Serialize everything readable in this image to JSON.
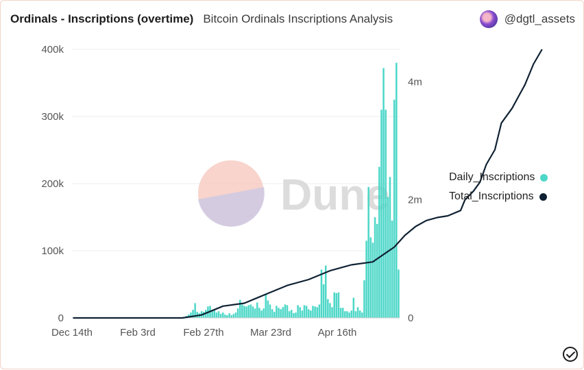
{
  "header": {
    "title": "Ordinals - Inscriptions (overtime)",
    "subtitle": "Bitcoin Ordinals Inscriptions Analysis",
    "author": "@dgtl_assets"
  },
  "watermark": "Dune",
  "chart_data": {
    "type": "bar+line",
    "y_left": {
      "ticks": [
        "0",
        "100k",
        "200k",
        "300k",
        "400k"
      ],
      "ylim": [
        0,
        400000
      ]
    },
    "y_right": {
      "ticks": [
        "0",
        "2m",
        "4m"
      ],
      "ylim": [
        0,
        4550000
      ]
    },
    "x_ticks": [
      "Dec 14th",
      "Feb 3rd",
      "Feb 27th",
      "Mar 23rd",
      "Apr 16th"
    ],
    "series": [
      {
        "name": "Daily_Inscriptions",
        "type": "bar",
        "axis": "left",
        "color": "#4dd7c8",
        "values": [
          0,
          0,
          0,
          0,
          0,
          0,
          0,
          0,
          0,
          0,
          0,
          0,
          0,
          0,
          0,
          0,
          0,
          0,
          0,
          0,
          0,
          0,
          0,
          0,
          0,
          0,
          0,
          0,
          0,
          0,
          0,
          0,
          0,
          0,
          0,
          0,
          0,
          0,
          0,
          0,
          0,
          0,
          0,
          0,
          0,
          0,
          0,
          0,
          0,
          0,
          0,
          500,
          1000,
          3000,
          5000,
          8000,
          12000,
          22000,
          9000,
          7000,
          10000,
          9000,
          12000,
          17000,
          18000,
          10000,
          12000,
          8000,
          10000,
          6000,
          8000,
          5000,
          4000,
          7000,
          4000,
          6000,
          8000,
          14000,
          27000,
          20000,
          18000,
          17000,
          19000,
          20000,
          17000,
          14000,
          23000,
          15000,
          11000,
          14000,
          36000,
          26000,
          20000,
          13000,
          9000,
          18000,
          15000,
          13000,
          16000,
          20000,
          19000,
          10000,
          12000,
          7000,
          8000,
          19000,
          16000,
          11000,
          19000,
          18000,
          13000,
          11000,
          18000,
          17000,
          16000,
          20000,
          72000,
          50000,
          78000,
          28000,
          22000,
          16000,
          38000,
          37000,
          38000,
          15000,
          15000,
          10000,
          10000,
          8000,
          11000,
          30000,
          10000,
          16000,
          11000,
          8000,
          56000,
          115000,
          195000,
          120000,
          112000,
          150000,
          140000,
          225000,
          310000,
          372000,
          310000,
          180000,
          210000,
          145000,
          325000,
          380000,
          72000
        ]
      },
      {
        "name": "Total_Inscriptions",
        "type": "line",
        "axis": "right",
        "color": "#0f2132",
        "points": [
          [
            0,
            0
          ],
          [
            51,
            0
          ],
          [
            60,
            50000
          ],
          [
            70,
            200000
          ],
          [
            80,
            250000
          ],
          [
            90,
            400000
          ],
          [
            100,
            550000
          ],
          [
            110,
            650000
          ],
          [
            120,
            800000
          ],
          [
            130,
            900000
          ],
          [
            140,
            950000
          ],
          [
            146,
            1100000
          ],
          [
            150,
            1200000
          ],
          [
            155,
            1400000
          ],
          [
            160,
            1550000
          ],
          [
            165,
            1650000
          ],
          [
            170,
            1700000
          ],
          [
            175,
            1730000
          ],
          [
            181,
            1820000
          ],
          [
            183,
            2000000
          ],
          [
            187,
            2150000
          ],
          [
            190,
            2300000
          ],
          [
            193,
            2600000
          ],
          [
            197,
            2850000
          ],
          [
            200,
            3300000
          ],
          [
            205,
            3550000
          ],
          [
            208,
            3750000
          ],
          [
            211,
            3950000
          ],
          [
            215,
            4300000
          ],
          [
            219,
            4550000
          ]
        ]
      }
    ],
    "legend": "right"
  }
}
